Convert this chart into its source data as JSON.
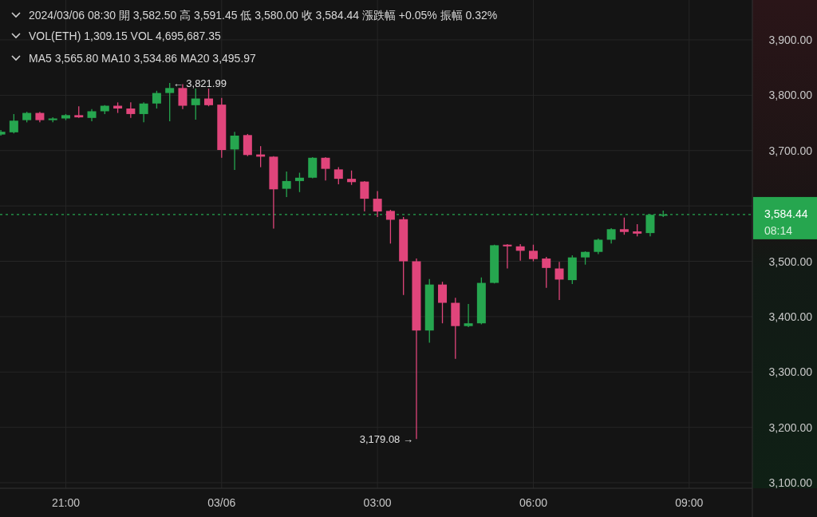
{
  "chart_data": {
    "type": "candlestick",
    "x": [
      "2024-03-05T19:45",
      "2024-03-05T20:00",
      "2024-03-05T20:15",
      "2024-03-05T20:30",
      "2024-03-05T20:45",
      "2024-03-05T21:00",
      "2024-03-05T21:15",
      "2024-03-05T21:30",
      "2024-03-05T21:45",
      "2024-03-05T22:00",
      "2024-03-05T22:15",
      "2024-03-05T22:30",
      "2024-03-05T22:45",
      "2024-03-05T23:00",
      "2024-03-05T23:15",
      "2024-03-05T23:30",
      "2024-03-05T23:45",
      "2024-03-06T00:00",
      "2024-03-06T00:15",
      "2024-03-06T00:30",
      "2024-03-06T00:45",
      "2024-03-06T01:00",
      "2024-03-06T01:15",
      "2024-03-06T01:30",
      "2024-03-06T01:45",
      "2024-03-06T02:00",
      "2024-03-06T02:15",
      "2024-03-06T02:30",
      "2024-03-06T02:45",
      "2024-03-06T03:00",
      "2024-03-06T03:15",
      "2024-03-06T03:30",
      "2024-03-06T03:45",
      "2024-03-06T04:00",
      "2024-03-06T04:15",
      "2024-03-06T04:30",
      "2024-03-06T04:45",
      "2024-03-06T05:00",
      "2024-03-06T05:15",
      "2024-03-06T05:30",
      "2024-03-06T05:45",
      "2024-03-06T06:00",
      "2024-03-06T06:15",
      "2024-03-06T06:30",
      "2024-03-06T06:45",
      "2024-03-06T07:00",
      "2024-03-06T07:15",
      "2024-03-06T07:30",
      "2024-03-06T07:45",
      "2024-03-06T08:00",
      "2024-03-06T08:15",
      "2024-03-06T08:30"
    ],
    "ohlc": [
      [
        3729,
        3737,
        3727,
        3734
      ],
      [
        3733,
        3766,
        3731,
        3754
      ],
      [
        3755,
        3770,
        3751,
        3768
      ],
      [
        3768,
        3770,
        3751,
        3755
      ],
      [
        3755,
        3760,
        3751,
        3758
      ],
      [
        3758,
        3766,
        3755,
        3764
      ],
      [
        3764,
        3780,
        3759,
        3760
      ],
      [
        3759,
        3775,
        3753,
        3771
      ],
      [
        3771,
        3782,
        3766,
        3781
      ],
      [
        3781,
        3787,
        3768,
        3776
      ],
      [
        3776,
        3787,
        3759,
        3766
      ],
      [
        3766,
        3787,
        3751,
        3785
      ],
      [
        3785,
        3808,
        3776,
        3804
      ],
      [
        3804,
        3821.99,
        3753,
        3813
      ],
      [
        3813,
        3820,
        3775,
        3781
      ],
      [
        3782,
        3812,
        3756,
        3794
      ],
      [
        3794,
        3812,
        3780,
        3782
      ],
      [
        3783,
        3795,
        3687,
        3701
      ],
      [
        3702,
        3734,
        3665,
        3727
      ],
      [
        3728,
        3730,
        3690,
        3692
      ],
      [
        3693,
        3708,
        3670,
        3689
      ],
      [
        3689,
        3690,
        3559,
        3630
      ],
      [
        3631,
        3662,
        3616,
        3645
      ],
      [
        3645,
        3660,
        3625,
        3651
      ],
      [
        3651,
        3688,
        3650,
        3687
      ],
      [
        3687,
        3688,
        3646,
        3667
      ],
      [
        3666,
        3670,
        3639,
        3649
      ],
      [
        3649,
        3664,
        3638,
        3643
      ],
      [
        3644,
        3645,
        3590,
        3613
      ],
      [
        3613,
        3627,
        3580,
        3590
      ],
      [
        3591,
        3593,
        3532,
        3575
      ],
      [
        3576,
        3580,
        3439,
        3500
      ],
      [
        3500,
        3505,
        3179.08,
        3375
      ],
      [
        3375,
        3468,
        3353,
        3458
      ],
      [
        3458,
        3463,
        3388,
        3425
      ],
      [
        3425,
        3434,
        3324,
        3383
      ],
      [
        3383,
        3423,
        3381,
        3388
      ],
      [
        3388,
        3471,
        3386,
        3461
      ],
      [
        3461,
        3530,
        3460,
        3529
      ],
      [
        3530,
        3531,
        3487,
        3527
      ],
      [
        3527,
        3531,
        3501,
        3519
      ],
      [
        3519,
        3530,
        3500,
        3504
      ],
      [
        3505,
        3508,
        3452,
        3488
      ],
      [
        3487,
        3499,
        3430,
        3467
      ],
      [
        3466,
        3511,
        3459,
        3507
      ],
      [
        3507,
        3518,
        3494,
        3517
      ],
      [
        3517,
        3541,
        3513,
        3539
      ],
      [
        3539,
        3560,
        3532,
        3558
      ],
      [
        3558,
        3579,
        3548,
        3553
      ],
      [
        3554,
        3567,
        3545,
        3550
      ],
      [
        3551,
        3585,
        3545,
        3584
      ],
      [
        3582.5,
        3591.45,
        3580,
        3584.44
      ]
    ],
    "colors": [
      "#26a64f",
      "#26a64f",
      "#26a64f",
      "#e0457b",
      "#26a64f",
      "#26a64f",
      "#e0457b",
      "#26a64f",
      "#26a64f",
      "#e0457b",
      "#e0457b",
      "#26a64f",
      "#26a64f",
      "#26a64f",
      "#e0457b",
      "#26a64f",
      "#e0457b",
      "#e0457b",
      "#26a64f",
      "#e0457b",
      "#e0457b",
      "#e0457b",
      "#26a64f",
      "#26a64f",
      "#26a64f",
      "#e0457b",
      "#e0457b",
      "#e0457b",
      "#e0457b",
      "#e0457b",
      "#e0457b",
      "#e0457b",
      "#e0457b",
      "#26a64f",
      "#e0457b",
      "#e0457b",
      "#26a64f",
      "#26a64f",
      "#26a64f",
      "#e0457b",
      "#e0457b",
      "#e0457b",
      "#e0457b",
      "#e0457b",
      "#26a64f",
      "#26a64f",
      "#26a64f",
      "#26a64f",
      "#e0457b",
      "#e0457b",
      "#26a64f",
      "#26a64f"
    ],
    "xlim": [
      "2024-03-05T19:44",
      "2024-03-06T10:13"
    ],
    "xticks": [
      {
        "value": "2024-03-05T21:00",
        "label": "21:00"
      },
      {
        "value": "2024-03-06T00:00",
        "label": "03/06"
      },
      {
        "value": "2024-03-06T03:00",
        "label": "03:00"
      },
      {
        "value": "2024-03-06T06:00",
        "label": "06:00"
      },
      {
        "value": "2024-03-06T09:00",
        "label": "09:00"
      }
    ],
    "ylim": [
      3090,
      3972
    ],
    "yticks": [
      {
        "value": 3100,
        "label": "3,100.00"
      },
      {
        "value": 3200,
        "label": "3,200.00"
      },
      {
        "value": 3300,
        "label": "3,300.00"
      },
      {
        "value": 3400,
        "label": "3,400.00"
      },
      {
        "value": 3500,
        "label": "3,500.00"
      },
      {
        "value": 3600,
        "label": null
      },
      {
        "value": 3700,
        "label": "3,700.00"
      },
      {
        "value": 3800,
        "label": "3,800.00"
      },
      {
        "value": 3900,
        "label": "3,900.00"
      }
    ],
    "grid": true,
    "ref_lines": [
      {
        "axis": "y",
        "value": 3584.44,
        "label": "3,584.44",
        "color": "#26a64f",
        "line_style": "dotted"
      }
    ],
    "annotations": [
      "2024/03/06 08:30 開 3,582.50 高 3,591.45 低 3,580.00 收 3,584.44 漲跌幅 +0.05% 振幅 0.32%",
      "VOL(ETH) 1,309.15 VOL 4,695,687.35",
      "MA5 3,565.80 MA10 3,534.86 MA20 3,495.97",
      "08:14",
      {
        "text": "← 3,821.99",
        "x": "2024-03-05T23:00",
        "y": 3821.99
      },
      {
        "text": "3,179.08 →",
        "x": "2024-03-06T03:45",
        "y": 3179.08
      }
    ]
  }
}
